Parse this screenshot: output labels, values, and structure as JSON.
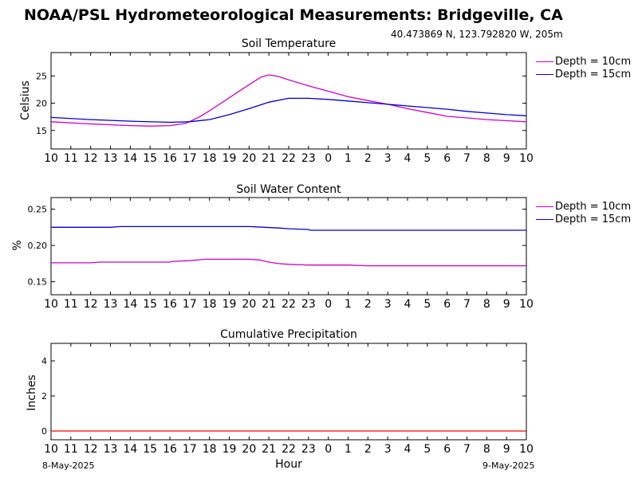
{
  "header": {
    "title": "NOAA/PSL Hydrometeorological Measurements: Bridgeville, CA",
    "location": "40.473869 N, 123.792820 W, 205m"
  },
  "footer": {
    "start_date": "8-May-2025",
    "end_date": "9-May-2025",
    "xlabel": "Hour"
  },
  "x_tick_labels": [
    "10",
    "11",
    "12",
    "13",
    "14",
    "15",
    "16",
    "17",
    "18",
    "19",
    "20",
    "21",
    "22",
    "23",
    "0",
    "1",
    "2",
    "3",
    "4",
    "5",
    "6",
    "7",
    "8",
    "9",
    "10"
  ],
  "chart_data": [
    {
      "type": "line",
      "title": "Soil Temperature",
      "ylabel": "Celsius",
      "xlabel": "",
      "x_unit_note": "hours elapsed from 8-May-2025 10:00",
      "x_range": [
        0,
        24
      ],
      "ylim": [
        11.6,
        29.3
      ],
      "yticks": [
        15,
        20,
        25
      ],
      "grid": false,
      "legend": "right",
      "series": [
        {
          "name": "Depth = 10cm",
          "color": "#cc00cc",
          "x": [
            0,
            2,
            4,
            5,
            6,
            6.8,
            7.5,
            8,
            9,
            10,
            10.6,
            11,
            11.5,
            12,
            13,
            14,
            15,
            16,
            17,
            18,
            19,
            20,
            21,
            22,
            23,
            24
          ],
          "y": [
            16.6,
            16.2,
            15.9,
            15.8,
            15.9,
            16.3,
            17.5,
            18.6,
            21.0,
            23.4,
            24.8,
            25.2,
            24.9,
            24.3,
            23.2,
            22.2,
            21.2,
            20.5,
            19.8,
            19.0,
            18.3,
            17.6,
            17.3,
            17.0,
            16.8,
            16.6
          ]
        },
        {
          "name": "Depth = 15cm",
          "color": "#0000cc",
          "x": [
            0,
            2,
            4,
            6,
            7,
            8,
            9,
            10,
            11,
            12,
            13,
            14,
            15,
            16,
            17,
            18,
            19,
            20,
            21,
            22,
            23,
            24
          ],
          "y": [
            17.4,
            17.0,
            16.7,
            16.5,
            16.6,
            17.0,
            17.9,
            19.0,
            20.2,
            20.9,
            20.9,
            20.7,
            20.4,
            20.1,
            19.8,
            19.5,
            19.2,
            18.9,
            18.5,
            18.2,
            17.9,
            17.7
          ]
        }
      ]
    },
    {
      "type": "line",
      "title": "Soil Water Content",
      "ylabel": "%",
      "xlabel": "",
      "x_unit_note": "hours elapsed from 8-May-2025 10:00",
      "x_range": [
        0,
        24
      ],
      "ylim": [
        0.132,
        0.266
      ],
      "yticks": [
        0.15,
        0.2,
        0.25
      ],
      "ytick_labels": [
        "0.15",
        "0.20",
        "0.25"
      ],
      "grid": false,
      "legend": "right",
      "series": [
        {
          "name": "Depth = 10cm",
          "color": "#cc00cc",
          "x": [
            0,
            2,
            2.5,
            6,
            6.1,
            7,
            7.8,
            10,
            10.5,
            11,
            11.5,
            12,
            13,
            15,
            16,
            24
          ],
          "y": [
            0.176,
            0.176,
            0.177,
            0.177,
            0.178,
            0.179,
            0.181,
            0.181,
            0.18,
            0.177,
            0.175,
            0.174,
            0.173,
            0.173,
            0.172,
            0.172
          ]
        },
        {
          "name": "Depth = 15cm",
          "color": "#0000cc",
          "x": [
            0,
            3,
            3.5,
            5,
            5.5,
            10,
            10.8,
            11.5,
            12,
            13,
            13.1,
            24
          ],
          "y": [
            0.225,
            0.225,
            0.226,
            0.226,
            0.226,
            0.226,
            0.225,
            0.224,
            0.223,
            0.222,
            0.221,
            0.221
          ]
        }
      ]
    },
    {
      "type": "line",
      "title": "Cumulative Precipitation",
      "ylabel": "Inches",
      "xlabel": "",
      "x_unit_note": "hours elapsed from 8-May-2025 10:00",
      "x_range": [
        0,
        24
      ],
      "ylim": [
        -0.5,
        5.0
      ],
      "yticks": [
        0,
        2,
        4
      ],
      "grid": false,
      "legend": "none",
      "series": [
        {
          "color": "#ff0000",
          "x": [
            0,
            24
          ],
          "y": [
            0,
            0
          ]
        }
      ]
    }
  ]
}
